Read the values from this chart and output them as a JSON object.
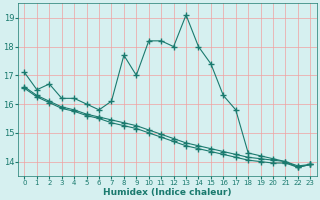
{
  "xlabel": "Humidex (Indice chaleur)",
  "bg_color": "#d6f0f0",
  "line_color": "#1a7a6e",
  "grid_color": "#f0a0a0",
  "xlim": [
    -0.5,
    23.5
  ],
  "ylim": [
    13.5,
    19.5
  ],
  "xticks": [
    0,
    1,
    2,
    3,
    4,
    5,
    6,
    7,
    8,
    9,
    10,
    11,
    12,
    13,
    14,
    15,
    16,
    17,
    18,
    19,
    20,
    21,
    22,
    23
  ],
  "yticks": [
    14,
    15,
    16,
    17,
    18,
    19
  ],
  "curve1_x": [
    0,
    1,
    2,
    3,
    4,
    5,
    6,
    7,
    8,
    9,
    10,
    11,
    12,
    13,
    14,
    15,
    16,
    17,
    18,
    19,
    20,
    21,
    22,
    23
  ],
  "curve1_y": [
    17.1,
    16.5,
    16.7,
    16.2,
    16.2,
    16.0,
    15.8,
    16.1,
    17.7,
    17.0,
    18.2,
    18.2,
    18.0,
    19.1,
    18.0,
    17.4,
    16.3,
    15.8,
    14.3,
    14.2,
    14.1,
    14.0,
    13.8,
    13.9
  ],
  "curve2_x": [
    0,
    1,
    2,
    3,
    4,
    5,
    6,
    7,
    8,
    9,
    10,
    11,
    12,
    13,
    14,
    15,
    16,
    17,
    18,
    19,
    20,
    21,
    22,
    23
  ],
  "curve2_y": [
    16.6,
    16.3,
    16.1,
    15.9,
    15.8,
    15.65,
    15.55,
    15.45,
    15.35,
    15.25,
    15.1,
    14.95,
    14.8,
    14.65,
    14.55,
    14.45,
    14.35,
    14.25,
    14.15,
    14.1,
    14.05,
    14.0,
    13.85,
    13.9
  ],
  "curve3_x": [
    0,
    1,
    2,
    3,
    4,
    5,
    6,
    7,
    8,
    9,
    10,
    11,
    12,
    13,
    14,
    15,
    16,
    17,
    18,
    19,
    20,
    21,
    22,
    23
  ],
  "curve3_y": [
    16.55,
    16.25,
    16.05,
    15.85,
    15.75,
    15.6,
    15.5,
    15.35,
    15.25,
    15.15,
    15.0,
    14.85,
    14.7,
    14.55,
    14.45,
    14.35,
    14.25,
    14.15,
    14.05,
    14.0,
    13.95,
    13.95,
    13.8,
    13.9
  ]
}
